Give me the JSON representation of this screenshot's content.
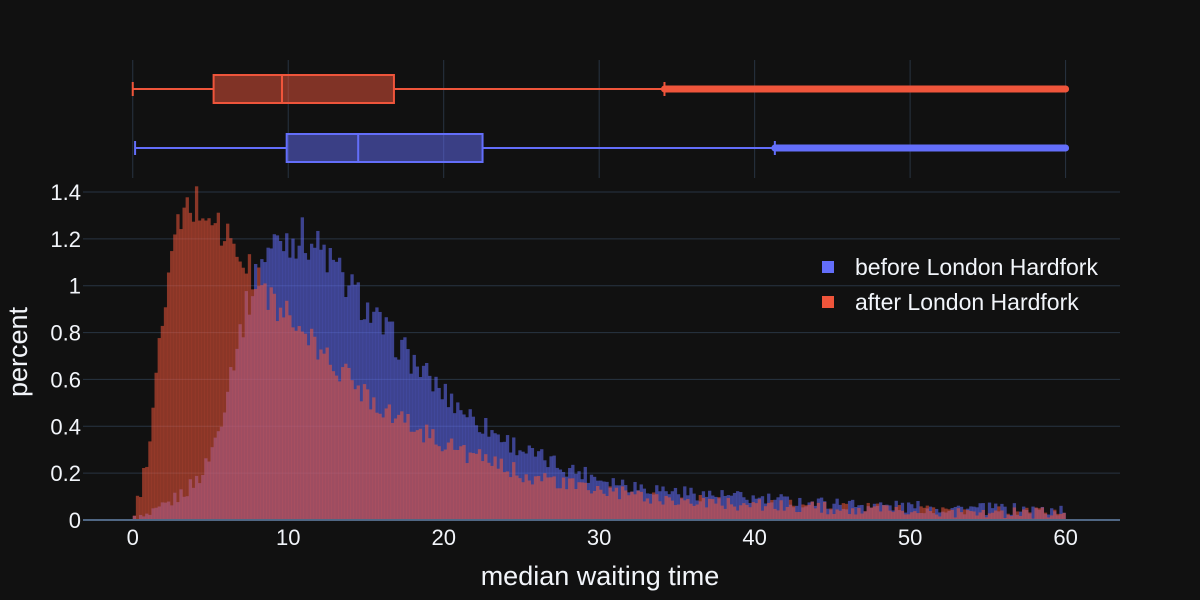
{
  "chart_data": {
    "type": "histogram",
    "xlabel": "median waiting time",
    "ylabel": "percent",
    "xlim": [
      -3.2,
      63.5
    ],
    "ylim": [
      0,
      1.4
    ],
    "x_ticks": [
      0,
      10,
      20,
      30,
      40,
      50,
      60
    ],
    "y_ticks": [
      0,
      0.2,
      0.4,
      0.6,
      0.8,
      1,
      1.2,
      1.4
    ],
    "y_tick_labels": [
      "0",
      "0.2",
      "0.4",
      "0.6",
      "0.8",
      "1",
      "1.2",
      "1.4"
    ],
    "bin_width": 0.2,
    "legend_position": "top-right",
    "series": [
      {
        "name": "before London Hardfork",
        "color": "#636efa",
        "profile": [
          [
            0,
            0
          ],
          [
            0.8,
            0.01
          ],
          [
            1.5,
            0.03
          ],
          [
            2.5,
            0.08
          ],
          [
            3.5,
            0.13
          ],
          [
            4.5,
            0.2
          ],
          [
            5.5,
            0.38
          ],
          [
            6.5,
            0.7
          ],
          [
            7.5,
            0.95
          ],
          [
            8.5,
            1.14
          ],
          [
            9.5,
            1.2
          ],
          [
            10.5,
            1.21
          ],
          [
            11.5,
            1.19
          ],
          [
            12.5,
            1.12
          ],
          [
            13.5,
            1.03
          ],
          [
            14.5,
            0.95
          ],
          [
            15.5,
            0.86
          ],
          [
            16.5,
            0.79
          ],
          [
            17.5,
            0.72
          ],
          [
            18.5,
            0.64
          ],
          [
            20,
            0.54
          ],
          [
            22,
            0.43
          ],
          [
            24,
            0.34
          ],
          [
            26,
            0.27
          ],
          [
            28,
            0.22
          ],
          [
            30,
            0.18
          ],
          [
            32,
            0.15
          ],
          [
            35,
            0.12
          ],
          [
            40,
            0.09
          ],
          [
            45,
            0.07
          ],
          [
            50,
            0.055
          ],
          [
            55,
            0.047
          ],
          [
            60,
            0.04
          ]
        ]
      },
      {
        "name": "after London Hardfork",
        "color": "#ef553b",
        "profile": [
          [
            0,
            0.01
          ],
          [
            0.5,
            0.12
          ],
          [
            1,
            0.3
          ],
          [
            1.5,
            0.6
          ],
          [
            2,
            0.9
          ],
          [
            2.5,
            1.12
          ],
          [
            3,
            1.25
          ],
          [
            3.5,
            1.32
          ],
          [
            4,
            1.35
          ],
          [
            4.5,
            1.33
          ],
          [
            5,
            1.3
          ],
          [
            5.5,
            1.26
          ],
          [
            6,
            1.21
          ],
          [
            6.5,
            1.16
          ],
          [
            7,
            1.11
          ],
          [
            7.5,
            1.06
          ],
          [
            8,
            1.02
          ],
          [
            9,
            0.94
          ],
          [
            10,
            0.86
          ],
          [
            11,
            0.79
          ],
          [
            12,
            0.72
          ],
          [
            13,
            0.66
          ],
          [
            14,
            0.6
          ],
          [
            15,
            0.54
          ],
          [
            16,
            0.49
          ],
          [
            17,
            0.44
          ],
          [
            18,
            0.4
          ],
          [
            20,
            0.33
          ],
          [
            22,
            0.27
          ],
          [
            24,
            0.22
          ],
          [
            26,
            0.18
          ],
          [
            28,
            0.15
          ],
          [
            30,
            0.125
          ],
          [
            33,
            0.1
          ],
          [
            36,
            0.08
          ],
          [
            40,
            0.065
          ],
          [
            45,
            0.05
          ],
          [
            50,
            0.04
          ],
          [
            55,
            0.032
          ],
          [
            60,
            0.028
          ]
        ]
      }
    ],
    "box_plots": [
      {
        "name": "after London Hardfork",
        "color": "#ef553b",
        "min": 0,
        "q1": 5.2,
        "median": 9.6,
        "q3": 16.8,
        "upper_fence": 34.2,
        "max": 60
      },
      {
        "name": "before London Hardfork",
        "color": "#636efa",
        "min": 0.15,
        "q1": 9.9,
        "median": 14.5,
        "q3": 22.5,
        "upper_fence": 41.3,
        "max": 60
      }
    ]
  }
}
